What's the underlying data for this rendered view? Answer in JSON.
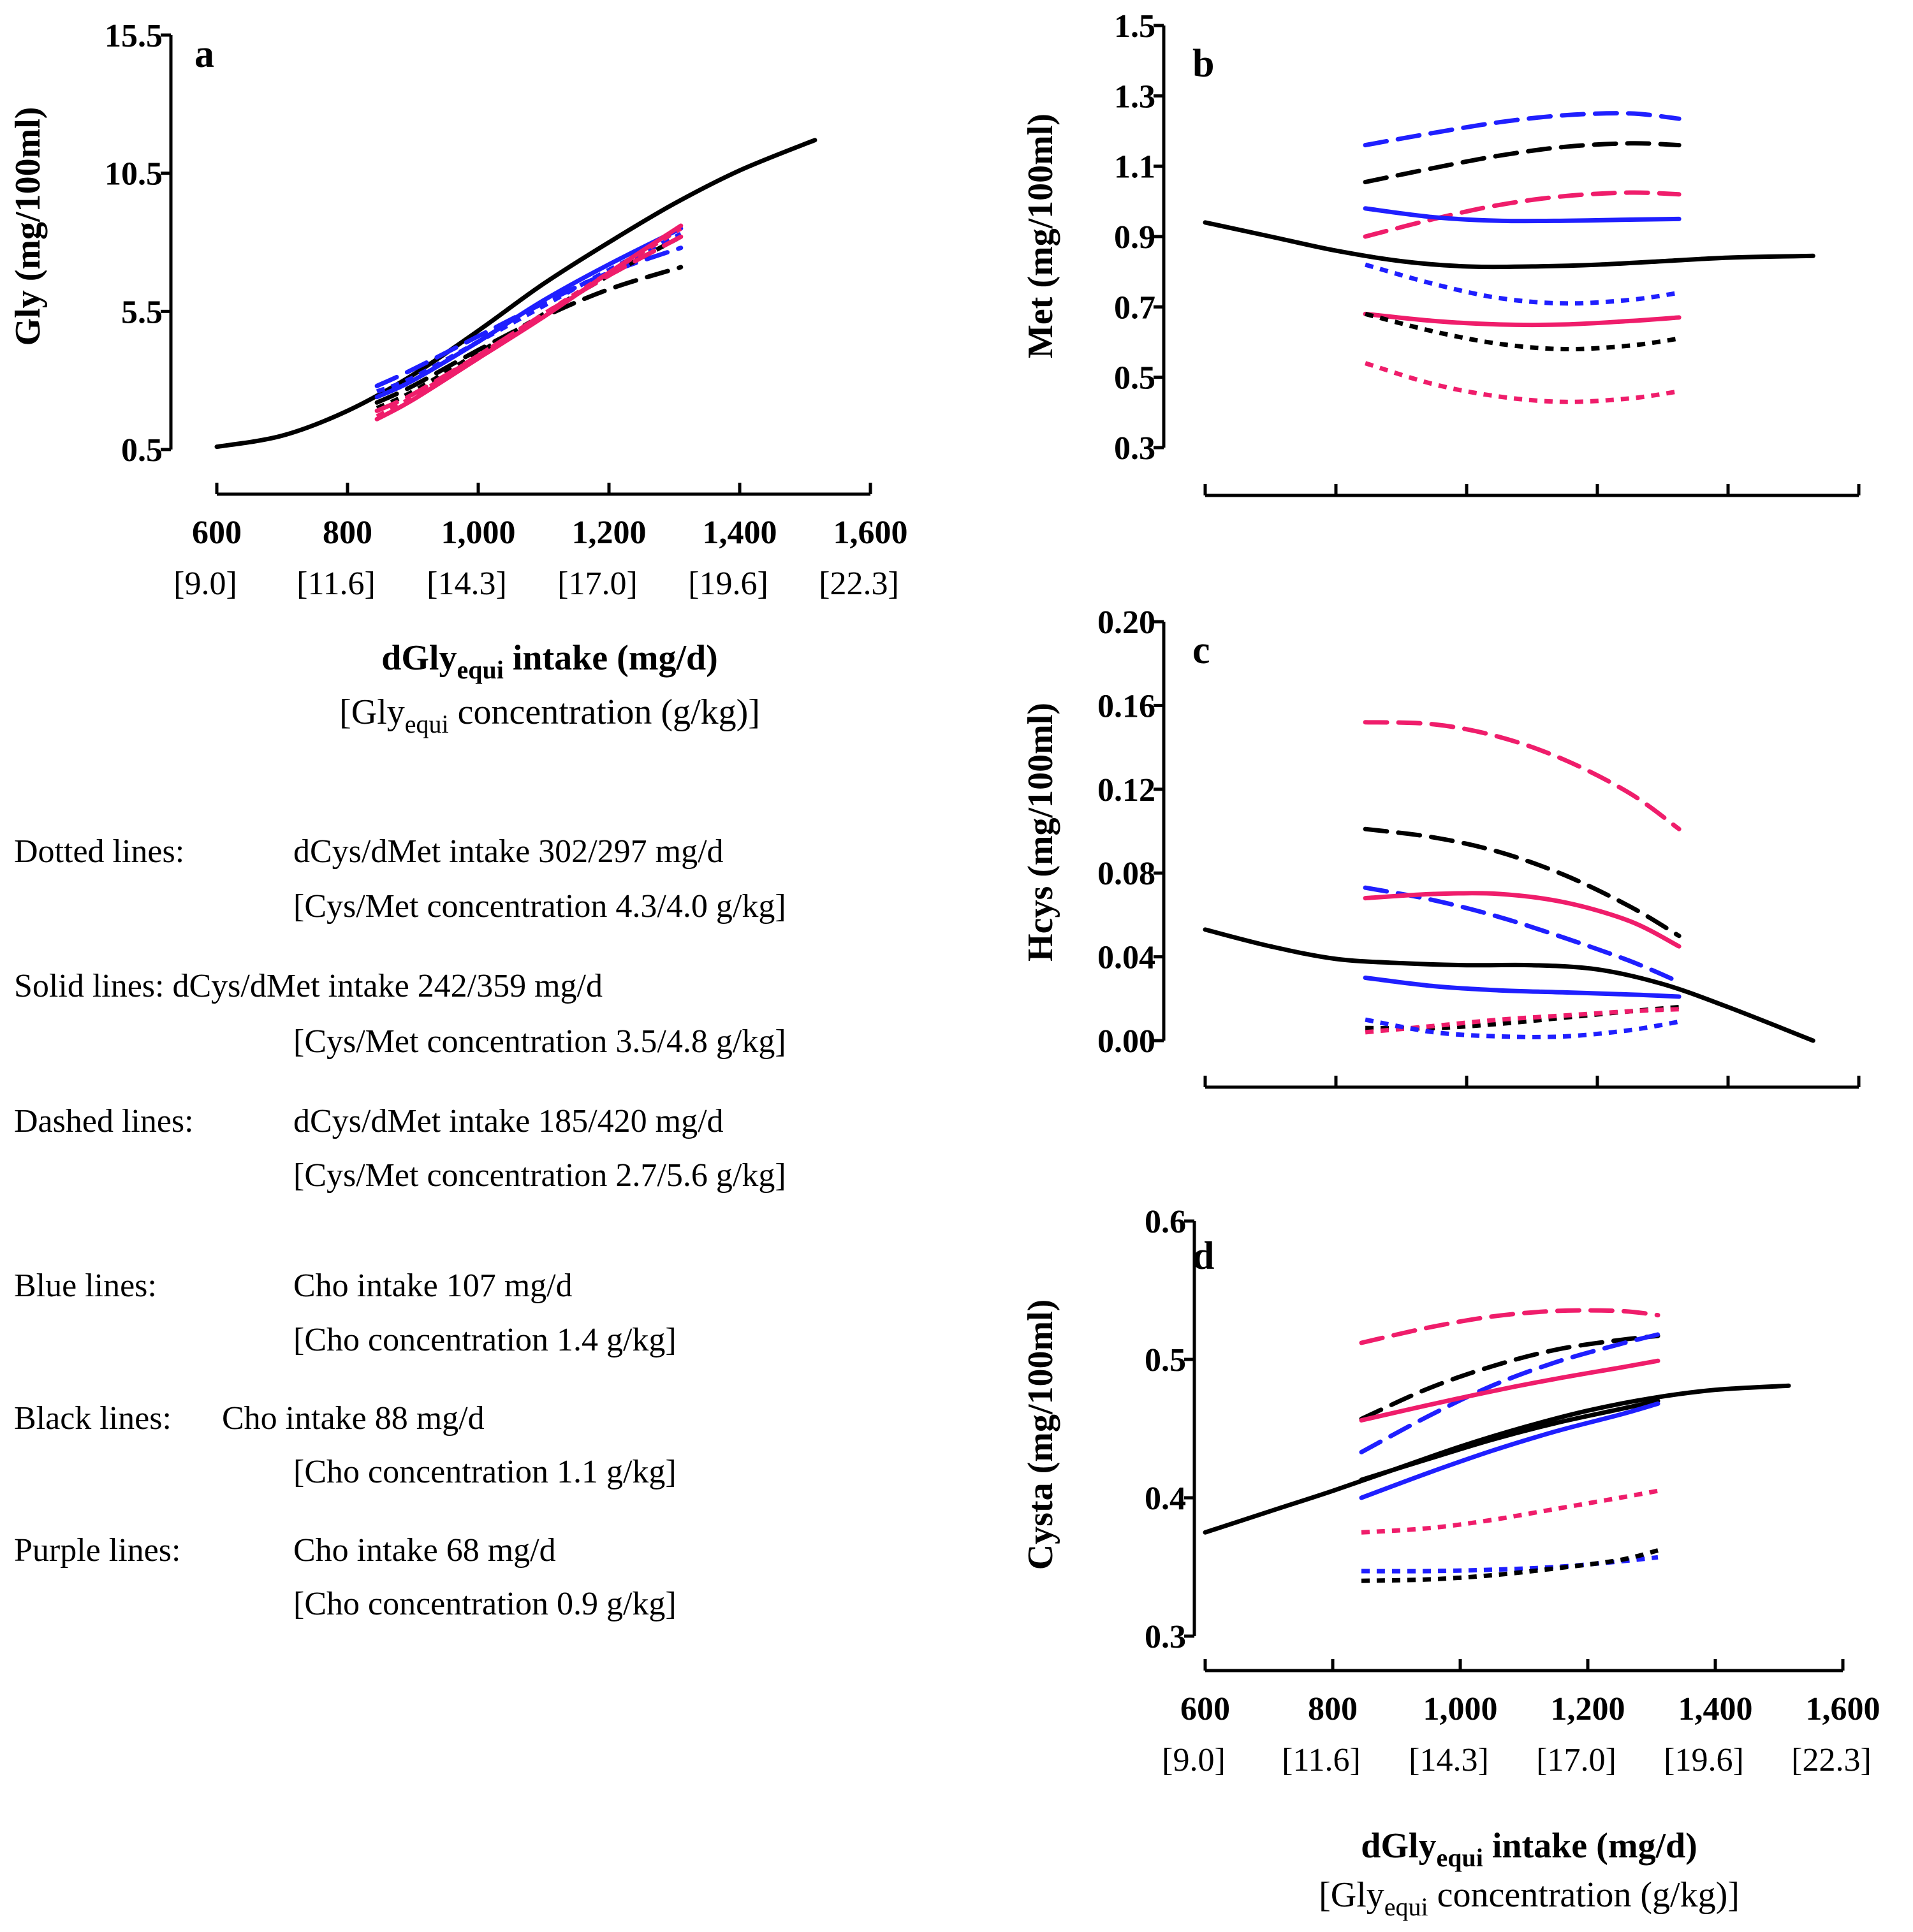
{
  "colors": {
    "blue": "#1f1fff",
    "black": "#000000",
    "purple": "#ef1d6b"
  },
  "figure": {
    "x_axis": {
      "ticks": [
        {
          "value": 600,
          "label": "600",
          "sub": "[9.0]"
        },
        {
          "value": 800,
          "label": "800",
          "sub": "[11.6]"
        },
        {
          "value": 1000,
          "label": "1,000",
          "sub": "[14.3]"
        },
        {
          "value": 1200,
          "label": "1,200",
          "sub": "[17.0]"
        },
        {
          "value": 1400,
          "label": "1,400",
          "sub": "[19.6]"
        },
        {
          "value": 1600,
          "label": "1,600",
          "sub": "[22.3]"
        }
      ],
      "title_main": "dGly",
      "title_sub": "equi",
      "title_rest": " intake (mg/d)",
      "concentration_pre": "[Gly",
      "concentration_sub": "equi",
      "concentration_rest": " concentration (g/kg)]"
    },
    "legend": [
      {
        "label": "Dotted lines:",
        "line1": "dCys/dMet intake 302/297 mg/d",
        "line2": "[Cys/Met concentration 4.3/4.0 g/kg]"
      },
      {
        "label": "Solid lines: dCys/dMet intake 242/359 mg/d",
        "line1": "",
        "line2": "[Cys/Met concentration 3.5/4.8 g/kg]"
      },
      {
        "label": "Dashed lines:",
        "line1": "dCys/dMet intake 185/420 mg/d",
        "line2": "[Cys/Met concentration 2.7/5.6 g/kg]"
      },
      {
        "label": "Blue lines:",
        "line1": "Cho intake 107 mg/d",
        "line2": "[Cho concentration 1.4 g/kg]"
      },
      {
        "label": "Black lines:",
        "line1": "Cho intake 88 mg/d",
        "line2": "[Cho concentration 1.1 g/kg]"
      },
      {
        "label": "Purple lines:",
        "line1": "Cho intake 68  mg/d",
        "line2": "[Cho concentration 0.9 g/kg]"
      }
    ]
  },
  "chart_data": [
    {
      "id": "a",
      "panel_label": "a",
      "type": "line",
      "ylabel": "Gly (mg/100ml)",
      "yticks": [
        {
          "value": 0.5,
          "label": "0.5"
        },
        {
          "value": 5.5,
          "label": "5.5"
        },
        {
          "value": 10.5,
          "label": "10.5"
        },
        {
          "value": 15.5,
          "label": "15.5"
        }
      ],
      "ylim": [
        0.5,
        15.5
      ],
      "xlim": [
        600,
        1600
      ],
      "series": [
        {
          "name": "reference",
          "color": "black",
          "style": "solid",
          "x": [
            600,
            700,
            800,
            900,
            1000,
            1100,
            1200,
            1300,
            1400,
            1515
          ],
          "y": [
            0.6,
            1.0,
            1.9,
            3.2,
            4.8,
            6.5,
            8.0,
            9.4,
            10.6,
            11.7
          ]
        },
        {
          "name": "blue dotted",
          "color": "blue",
          "style": "dotted",
          "x": [
            845,
            900,
            1000,
            1100,
            1200,
            1310
          ],
          "y": [
            2.6,
            3.1,
            4.4,
            5.7,
            7.0,
            8.3
          ]
        },
        {
          "name": "blue solid",
          "color": "blue",
          "style": "solid",
          "x": [
            845,
            900,
            1000,
            1100,
            1200,
            1310
          ],
          "y": [
            2.4,
            3.0,
            4.4,
            5.9,
            7.2,
            8.5
          ]
        },
        {
          "name": "blue dashed",
          "color": "blue",
          "style": "dashed",
          "x": [
            845,
            900,
            1000,
            1100,
            1200,
            1310
          ],
          "y": [
            2.8,
            3.4,
            4.6,
            5.8,
            6.9,
            7.8
          ]
        },
        {
          "name": "black dotted",
          "color": "black",
          "style": "dotted",
          "x": [
            845,
            900,
            1000,
            1100,
            1200,
            1310
          ],
          "y": [
            2.0,
            2.6,
            4.0,
            5.4,
            6.8,
            8.2
          ]
        },
        {
          "name": "black dashed",
          "color": "black",
          "style": "dashed",
          "x": [
            845,
            900,
            1000,
            1100,
            1200,
            1310
          ],
          "y": [
            2.2,
            2.8,
            4.1,
            5.3,
            6.3,
            7.1
          ]
        },
        {
          "name": "purple dotted",
          "color": "purple",
          "style": "dotted",
          "x": [
            845,
            900,
            1000,
            1100,
            1200,
            1310
          ],
          "y": [
            1.7,
            2.4,
            3.9,
            5.4,
            6.9,
            8.5
          ]
        },
        {
          "name": "purple solid",
          "color": "purple",
          "style": "solid",
          "x": [
            845,
            900,
            1000,
            1100,
            1200,
            1310
          ],
          "y": [
            1.6,
            2.3,
            3.8,
            5.3,
            6.9,
            8.6
          ]
        },
        {
          "name": "purple dashed",
          "color": "purple",
          "style": "dashed",
          "x": [
            845,
            900,
            1000,
            1100,
            1200,
            1310
          ],
          "y": [
            1.9,
            2.5,
            3.9,
            5.4,
            6.8,
            8.2
          ]
        }
      ]
    },
    {
      "id": "b",
      "panel_label": "b",
      "type": "line",
      "ylabel": "Met (mg/100ml)",
      "yticks": [
        {
          "value": 0.3,
          "label": "0.3"
        },
        {
          "value": 0.5,
          "label": "0.5"
        },
        {
          "value": 0.7,
          "label": "0.7"
        },
        {
          "value": 0.9,
          "label": "0.9"
        },
        {
          "value": 1.1,
          "label": "1.1"
        },
        {
          "value": 1.3,
          "label": "1.3"
        },
        {
          "value": 1.5,
          "label": "1.5"
        }
      ],
      "ylim": [
        0.3,
        1.5
      ],
      "xlim": [
        600,
        1600
      ],
      "series": [
        {
          "name": "reference",
          "color": "black",
          "style": "solid",
          "x": [
            600,
            700,
            800,
            900,
            1000,
            1100,
            1200,
            1300,
            1400,
            1530
          ],
          "y": [
            0.94,
            0.9,
            0.86,
            0.83,
            0.815,
            0.815,
            0.82,
            0.83,
            0.84,
            0.845
          ]
        },
        {
          "name": "blue dashed",
          "color": "blue",
          "style": "dashed",
          "x": [
            845,
            950,
            1050,
            1150,
            1250,
            1325
          ],
          "y": [
            1.16,
            1.195,
            1.225,
            1.245,
            1.25,
            1.235
          ]
        },
        {
          "name": "black dashed",
          "color": "black",
          "style": "dashed",
          "x": [
            845,
            950,
            1050,
            1150,
            1250,
            1325
          ],
          "y": [
            1.055,
            1.095,
            1.13,
            1.155,
            1.165,
            1.16
          ]
        },
        {
          "name": "purple dashed",
          "color": "purple",
          "style": "dashed",
          "x": [
            845,
            950,
            1050,
            1150,
            1250,
            1325
          ],
          "y": [
            0.9,
            0.95,
            0.99,
            1.015,
            1.025,
            1.02
          ]
        },
        {
          "name": "blue solid",
          "color": "blue",
          "style": "solid",
          "x": [
            845,
            950,
            1050,
            1150,
            1250,
            1325
          ],
          "y": [
            0.98,
            0.955,
            0.945,
            0.945,
            0.948,
            0.95
          ]
        },
        {
          "name": "blue dotted",
          "color": "blue",
          "style": "dotted",
          "x": [
            845,
            950,
            1050,
            1150,
            1250,
            1325
          ],
          "y": [
            0.82,
            0.765,
            0.725,
            0.71,
            0.72,
            0.74
          ]
        },
        {
          "name": "purple solid",
          "color": "purple",
          "style": "solid",
          "x": [
            845,
            950,
            1050,
            1150,
            1250,
            1325
          ],
          "y": [
            0.68,
            0.66,
            0.65,
            0.65,
            0.66,
            0.67
          ]
        },
        {
          "name": "black dotted",
          "color": "black",
          "style": "dotted",
          "x": [
            845,
            950,
            1050,
            1150,
            1250,
            1325
          ],
          "y": [
            0.68,
            0.63,
            0.595,
            0.58,
            0.59,
            0.61
          ]
        },
        {
          "name": "purple dotted",
          "color": "purple",
          "style": "dotted",
          "x": [
            845,
            950,
            1050,
            1150,
            1250,
            1325
          ],
          "y": [
            0.54,
            0.48,
            0.445,
            0.43,
            0.44,
            0.46
          ]
        }
      ]
    },
    {
      "id": "c",
      "panel_label": "c",
      "type": "line",
      "ylabel": "Hcys (mg/100ml)",
      "yticks": [
        {
          "value": 0.0,
          "label": "0.00"
        },
        {
          "value": 0.04,
          "label": "0.04"
        },
        {
          "value": 0.08,
          "label": "0.08"
        },
        {
          "value": 0.12,
          "label": "0.12"
        },
        {
          "value": 0.16,
          "label": "0.16"
        },
        {
          "value": 0.2,
          "label": "0.20"
        }
      ],
      "ylim": [
        0.0,
        0.2
      ],
      "xlim": [
        600,
        1600
      ],
      "series": [
        {
          "name": "reference",
          "color": "black",
          "style": "solid",
          "x": [
            600,
            700,
            800,
            900,
            1000,
            1100,
            1200,
            1300,
            1400,
            1530
          ],
          "y": [
            0.053,
            0.045,
            0.039,
            0.037,
            0.036,
            0.036,
            0.034,
            0.027,
            0.016,
            0.0
          ]
        },
        {
          "name": "purple dashed",
          "color": "purple",
          "style": "dashed",
          "x": [
            845,
            950,
            1050,
            1150,
            1250,
            1325
          ],
          "y": [
            0.152,
            0.151,
            0.145,
            0.134,
            0.118,
            0.101
          ]
        },
        {
          "name": "black dashed",
          "color": "black",
          "style": "dashed",
          "x": [
            845,
            950,
            1050,
            1150,
            1250,
            1325
          ],
          "y": [
            0.101,
            0.097,
            0.09,
            0.079,
            0.064,
            0.05
          ]
        },
        {
          "name": "blue dashed",
          "color": "blue",
          "style": "dashed",
          "x": [
            845,
            950,
            1050,
            1150,
            1250,
            1325
          ],
          "y": [
            0.073,
            0.067,
            0.059,
            0.049,
            0.038,
            0.028
          ]
        },
        {
          "name": "purple solid",
          "color": "purple",
          "style": "solid",
          "x": [
            845,
            950,
            1050,
            1150,
            1250,
            1325
          ],
          "y": [
            0.068,
            0.07,
            0.07,
            0.066,
            0.057,
            0.045
          ]
        },
        {
          "name": "blue solid",
          "color": "blue",
          "style": "solid",
          "x": [
            845,
            950,
            1050,
            1150,
            1250,
            1325
          ],
          "y": [
            0.03,
            0.026,
            0.024,
            0.023,
            0.022,
            0.021
          ]
        },
        {
          "name": "black dotted",
          "color": "black",
          "style": "dotted",
          "x": [
            845,
            950,
            1050,
            1150,
            1250,
            1325
          ],
          "y": [
            0.006,
            0.006,
            0.008,
            0.011,
            0.014,
            0.016
          ]
        },
        {
          "name": "purple dotted",
          "color": "purple",
          "style": "dotted",
          "x": [
            845,
            950,
            1050,
            1150,
            1250,
            1325
          ],
          "y": [
            0.004,
            0.007,
            0.01,
            0.012,
            0.014,
            0.015
          ]
        },
        {
          "name": "blue dotted",
          "color": "blue",
          "style": "dotted",
          "x": [
            845,
            950,
            1050,
            1150,
            1250,
            1325
          ],
          "y": [
            0.01,
            0.004,
            0.002,
            0.002,
            0.005,
            0.009
          ]
        }
      ]
    },
    {
      "id": "d",
      "panel_label": "d",
      "type": "line",
      "ylabel": "Cysta (mg/100ml)",
      "yticks": [
        {
          "value": 0.3,
          "label": "0.3"
        },
        {
          "value": 0.4,
          "label": "0.4"
        },
        {
          "value": 0.5,
          "label": "0.5"
        },
        {
          "value": 0.6,
          "label": "0.6"
        }
      ],
      "ylim": [
        0.3,
        0.6
      ],
      "xlim": [
        600,
        1600
      ],
      "series": [
        {
          "name": "reference",
          "color": "black",
          "style": "solid",
          "x": [
            600,
            700,
            800,
            900,
            1000,
            1100,
            1200,
            1300,
            1400,
            1515
          ],
          "y": [
            0.375,
            0.39,
            0.405,
            0.421,
            0.437,
            0.451,
            0.463,
            0.472,
            0.478,
            0.481
          ]
        },
        {
          "name": "purple dashed",
          "color": "purple",
          "style": "dashed",
          "x": [
            845,
            950,
            1050,
            1150,
            1250,
            1310
          ],
          "y": [
            0.512,
            0.523,
            0.531,
            0.535,
            0.535,
            0.532
          ]
        },
        {
          "name": "black dashed",
          "color": "black",
          "style": "dashed",
          "x": [
            845,
            950,
            1050,
            1150,
            1250,
            1310
          ],
          "y": [
            0.457,
            0.479,
            0.495,
            0.507,
            0.514,
            0.517
          ]
        },
        {
          "name": "blue dashed",
          "color": "blue",
          "style": "dashed",
          "x": [
            845,
            950,
            1050,
            1150,
            1250,
            1310
          ],
          "y": [
            0.433,
            0.459,
            0.481,
            0.498,
            0.511,
            0.518
          ]
        },
        {
          "name": "purple solid",
          "color": "purple",
          "style": "solid",
          "x": [
            845,
            950,
            1050,
            1150,
            1250,
            1310
          ],
          "y": [
            0.456,
            0.467,
            0.477,
            0.486,
            0.494,
            0.499
          ]
        },
        {
          "name": "black solid",
          "color": "black",
          "style": "solid",
          "x": [
            845,
            950,
            1050,
            1150,
            1250,
            1310
          ],
          "y": [
            0.413,
            0.428,
            0.442,
            0.454,
            0.464,
            0.47
          ]
        },
        {
          "name": "blue solid",
          "color": "blue",
          "style": "solid",
          "x": [
            845,
            950,
            1050,
            1150,
            1250,
            1310
          ],
          "y": [
            0.4,
            0.418,
            0.434,
            0.448,
            0.46,
            0.468
          ]
        },
        {
          "name": "purple dotted",
          "color": "purple",
          "style": "dotted",
          "x": [
            845,
            950,
            1050,
            1150,
            1250,
            1310
          ],
          "y": [
            0.375,
            0.378,
            0.384,
            0.392,
            0.4,
            0.405
          ]
        },
        {
          "name": "blue dotted",
          "color": "blue",
          "style": "dotted",
          "x": [
            845,
            950,
            1050,
            1150,
            1250,
            1310
          ],
          "y": [
            0.347,
            0.347,
            0.348,
            0.35,
            0.354,
            0.357
          ]
        },
        {
          "name": "black dotted",
          "color": "black",
          "style": "dotted",
          "x": [
            845,
            950,
            1050,
            1150,
            1250,
            1310
          ],
          "y": [
            0.34,
            0.341,
            0.344,
            0.349,
            0.355,
            0.362
          ]
        }
      ]
    }
  ]
}
